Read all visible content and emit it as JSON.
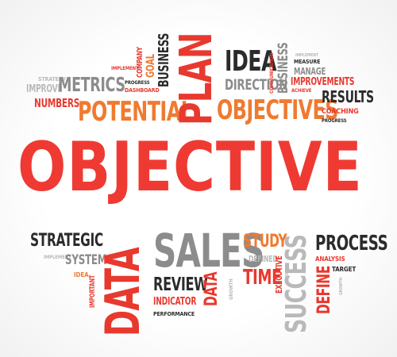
{
  "cloud": {
    "main_word": "OBJECTIVE",
    "words": {
      "strategy": "STRATEGY",
      "improve": "IMPROVE",
      "metrics": "METRICS",
      "numbers": "NUMBERS",
      "implement_top": "IMPLEMENT",
      "progress_top": "PROGRESS",
      "dashboard": "DASHBOARD",
      "company": "COMPANY",
      "goal": "GOAL",
      "business_top": "BUSINESS",
      "plan": "PLAN",
      "potential": "POTENTIAL",
      "idea_top": "IDEA",
      "direction": "DIRECTION",
      "objectives": "OBJECTIVES",
      "communication": "COMMUNICATION",
      "business_right": "BUSINESS",
      "implement_right": "IMPLEMENT",
      "manage": "MANAGE",
      "measure": "MEASURE",
      "improvements": "IMPROVEMENTS",
      "achieve": "ACHIEVE",
      "results": "RESULTS",
      "coaching": "COACHING",
      "progress_right": "PROGRESS",
      "strategic": "STRATEGIC",
      "implement_bottom": "IMPLEMENT",
      "system": "SYSTEM",
      "idea_bottom": "IDEA",
      "important": "IMPORTANT",
      "data_big": "DATA",
      "sales": "SALES",
      "review": "REVIEW",
      "data_small": "DATA",
      "growth_left": "GROWTH",
      "indicator": "INDICATOR",
      "performance": "PERFORMANCE",
      "study": "STUDY",
      "defined": "DEFINED",
      "time": "TIME",
      "executive": "EXECUTIVE",
      "growth_right": "GROWTH",
      "success": "SUCCESS",
      "process": "PROCESS",
      "analysis": "ANALYSIS",
      "define": "DEFINE",
      "target": "TARGET",
      "growth_far": "GROWTH"
    }
  }
}
